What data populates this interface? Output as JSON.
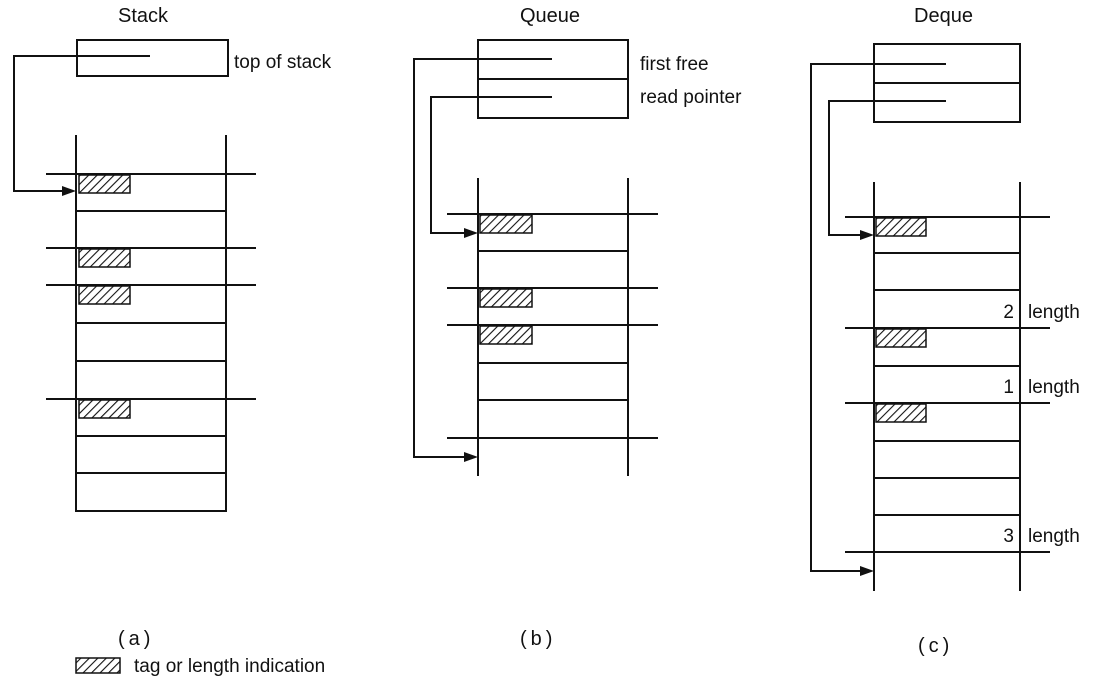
{
  "panels": {
    "stack": {
      "title": "Stack",
      "pointer_label": "top of stack",
      "caption": "(a)"
    },
    "queue": {
      "title": "Queue",
      "pointer_labels": [
        "first free",
        "read pointer"
      ],
      "caption": "(b)"
    },
    "deque": {
      "title": "Deque",
      "length_labels": [
        {
          "number": "2",
          "text": "length"
        },
        {
          "number": "1",
          "text": "length"
        },
        {
          "number": "3",
          "text": "length"
        }
      ],
      "caption": "(c)"
    }
  },
  "legend": {
    "text": "tag or length indication"
  }
}
